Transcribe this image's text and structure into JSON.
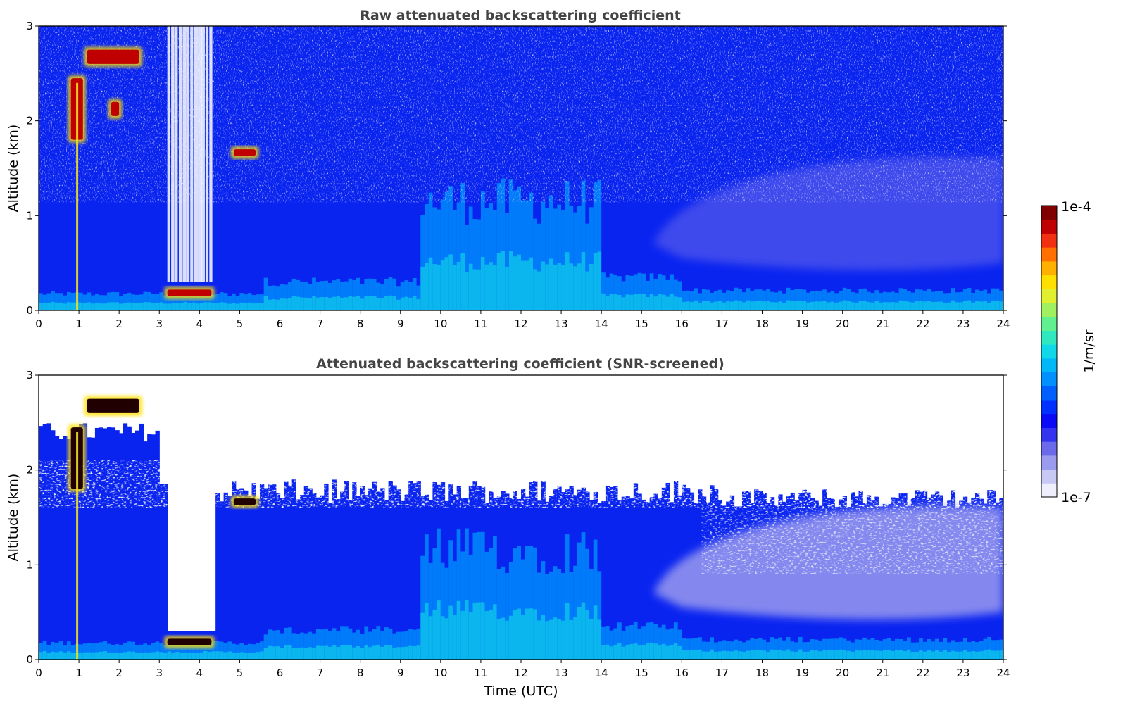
{
  "chart_data": [
    {
      "type": "heatmap",
      "title": "Raw attenuated backscattering coefficient",
      "xlabel": "",
      "ylabel": "Altitude (km)",
      "xlim": [
        0,
        24
      ],
      "ylim": [
        0,
        3
      ],
      "x_ticks": [
        "0",
        "1",
        "2",
        "3",
        "4",
        "5",
        "6",
        "7",
        "8",
        "9",
        "10",
        "11",
        "12",
        "13",
        "14",
        "15",
        "16",
        "17",
        "18",
        "19",
        "20",
        "21",
        "22",
        "23",
        "24"
      ],
      "y_ticks": [
        "0",
        "1",
        "2",
        "3"
      ],
      "screened": false,
      "features": [
        {
          "kind": "cloud",
          "t": [
            0.8,
            1.1
          ],
          "alt": [
            1.8,
            2.45
          ],
          "level": "max"
        },
        {
          "kind": "cloud",
          "t": [
            1.2,
            2.5
          ],
          "alt": [
            2.6,
            2.75
          ],
          "level": "max"
        },
        {
          "kind": "cloud",
          "t": [
            1.8,
            2.0
          ],
          "alt": [
            2.05,
            2.2
          ],
          "level": "max"
        },
        {
          "kind": "cloud",
          "t": [
            4.85,
            5.4
          ],
          "alt": [
            1.63,
            1.7
          ],
          "level": "max"
        },
        {
          "kind": "low_cloud",
          "t": [
            3.2,
            4.3
          ],
          "alt": [
            0.15,
            0.22
          ],
          "level": "max"
        },
        {
          "kind": "boundary_layer",
          "t": [
            9.5,
            13.8
          ],
          "alt": [
            0.0,
            1.5
          ],
          "level": "cyan"
        }
      ]
    },
    {
      "type": "heatmap",
      "title": "Attenuated backscattering coefficient (SNR-screened)",
      "xlabel": "Time (UTC)",
      "ylabel": "Altitude (km)",
      "xlim": [
        0,
        24
      ],
      "ylim": [
        0,
        3
      ],
      "x_ticks": [
        "0",
        "1",
        "2",
        "3",
        "4",
        "5",
        "6",
        "7",
        "8",
        "9",
        "10",
        "11",
        "12",
        "13",
        "14",
        "15",
        "16",
        "17",
        "18",
        "19",
        "20",
        "21",
        "22",
        "23",
        "24"
      ],
      "y_ticks": [
        "0",
        "1",
        "2",
        "3"
      ],
      "screened": true,
      "features": [
        {
          "kind": "cloud",
          "t": [
            0.8,
            1.1
          ],
          "alt": [
            1.8,
            2.45
          ],
          "level": "max"
        },
        {
          "kind": "cloud",
          "t": [
            1.2,
            2.5
          ],
          "alt": [
            2.6,
            2.75
          ],
          "level": "max"
        },
        {
          "kind": "cloud",
          "t": [
            4.85,
            5.4
          ],
          "alt": [
            1.63,
            1.7
          ],
          "level": "max"
        },
        {
          "kind": "low_cloud",
          "t": [
            3.2,
            4.3
          ],
          "alt": [
            0.15,
            0.22
          ],
          "level": "max"
        },
        {
          "kind": "boundary_layer",
          "t": [
            9.5,
            13.8
          ],
          "alt": [
            0.0,
            1.5
          ],
          "level": "cyan"
        }
      ]
    }
  ],
  "colorbar": {
    "label": "1/m/sr",
    "min_label": "1e-7",
    "max_label": "1e-4",
    "colors": [
      "#eeeefc",
      "#c8c8f4",
      "#9a9aee",
      "#6a6aea",
      "#3434f0",
      "#0a0af6",
      "#0030ff",
      "#0060ff",
      "#0090ff",
      "#00b8f8",
      "#10d8e8",
      "#30e8c0",
      "#60f090",
      "#a0f060",
      "#e0f030",
      "#ffe000",
      "#ffb000",
      "#ff7000",
      "#f03010",
      "#c00000",
      "#800000"
    ]
  }
}
